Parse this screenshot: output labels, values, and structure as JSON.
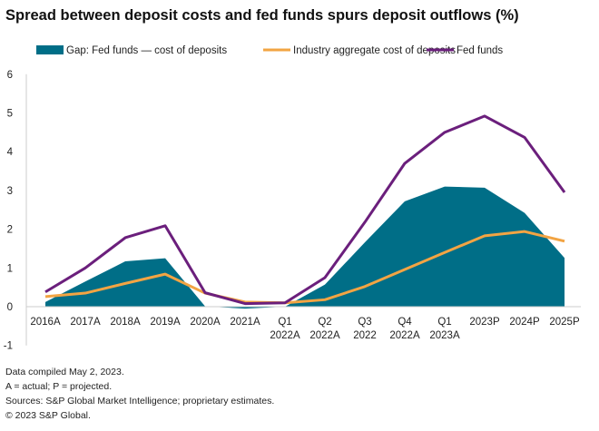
{
  "chart_data": {
    "type": "area+line",
    "title": "Spread between deposit costs and fed funds spurs deposit outflows (%)",
    "categories": [
      [
        "2016A"
      ],
      [
        "2017A"
      ],
      [
        "2018A"
      ],
      [
        "2019A"
      ],
      [
        "2020A"
      ],
      [
        "2021A"
      ],
      [
        "Q1",
        "2022A"
      ],
      [
        "Q2",
        "2022A"
      ],
      [
        "Q3",
        "2022"
      ],
      [
        "Q4",
        "2022A"
      ],
      [
        "Q1",
        "2023A"
      ],
      [
        "2023P"
      ],
      [
        "2024P"
      ],
      [
        "2025P"
      ]
    ],
    "ylim": [
      -1,
      6
    ],
    "yticks": [
      -1,
      0,
      1,
      2,
      3,
      4,
      5,
      6
    ],
    "grid": false,
    "legend_position": "top",
    "series": [
      {
        "name": "Gap: Fed funds — cost of deposits",
        "kind": "area",
        "color": "#006e87",
        "values": [
          0.12,
          0.65,
          1.17,
          1.25,
          0.01,
          -0.05,
          0.0,
          0.57,
          1.66,
          2.72,
          3.1,
          3.07,
          2.42,
          1.26
        ]
      },
      {
        "name": "Industry aggregate cost of deposits",
        "kind": "line",
        "color": "#f2a443",
        "values": [
          0.26,
          0.35,
          0.6,
          0.84,
          0.35,
          0.12,
          0.1,
          0.18,
          0.52,
          0.96,
          1.4,
          1.83,
          1.94,
          1.69
        ]
      },
      {
        "name": "Fed funds",
        "kind": "line",
        "color": "#6b1f7c",
        "values": [
          0.38,
          1.0,
          1.78,
          2.09,
          0.36,
          0.08,
          0.1,
          0.75,
          2.18,
          3.7,
          4.5,
          4.92,
          4.37,
          2.95
        ]
      }
    ]
  },
  "footer": [
    "Data compiled May 2, 2023.",
    "A = actual; P = projected.",
    "Sources: S&P Global Market Intelligence; proprietary estimates.",
    "© 2023 S&P Global."
  ]
}
